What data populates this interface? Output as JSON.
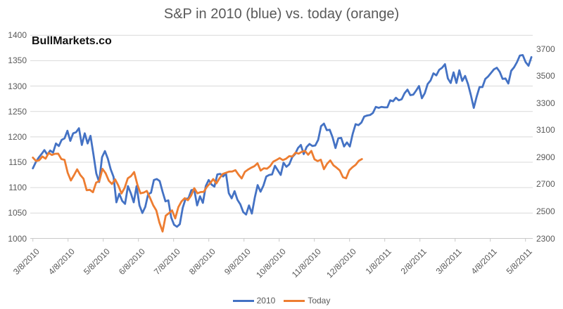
{
  "watermark": "BullMarkets.co",
  "chart_data": {
    "type": "line",
    "title": "S&P in 2010 (blue) vs. today (orange)",
    "grid": true,
    "legend_position": "bottom-center",
    "x_labels": [
      "3/8/2010",
      "4/8/2010",
      "5/8/2010",
      "6/8/2010",
      "7/8/2010",
      "8/8/2010",
      "9/8/2010",
      "10/8/2010",
      "11/8/2010",
      "12/8/2010",
      "1/8/2011",
      "2/8/2011",
      "3/8/2011",
      "4/8/2011",
      "5/8/2011"
    ],
    "axes": {
      "left": {
        "min": 1000,
        "max": 1400,
        "step": 50,
        "tick_labels": [
          "1400",
          "1350",
          "1300",
          "1250",
          "1200",
          "1150",
          "1100",
          "1050",
          "1000"
        ]
      },
      "right": {
        "label_min": 2300,
        "label_max": 3700,
        "step": 200,
        "scale_min": 2300,
        "scale_max": 3800,
        "tick_labels": [
          "3700",
          "3500",
          "3300",
          "3100",
          "2900",
          "2700",
          "2500",
          "2300"
        ]
      }
    },
    "series": [
      {
        "name": "2010",
        "color": "#4472C4",
        "axis": "left",
        "x_start_frac": 0.0,
        "x_end_frac": 1.012,
        "values": [
          1138,
          1150,
          1159,
          1166,
          1174,
          1165,
          1173,
          1169,
          1187,
          1182,
          1194,
          1197,
          1212,
          1192,
          1207,
          1209,
          1217,
          1184,
          1207,
          1187,
          1202,
          1166,
          1128,
          1111,
          1160,
          1172,
          1157,
          1136,
          1121,
          1071,
          1088,
          1074,
          1068,
          1103,
          1089,
          1071,
          1103,
          1065,
          1050,
          1062,
          1087,
          1090,
          1115,
          1117,
          1113,
          1092,
          1073,
          1075,
          1041,
          1027,
          1023,
          1028,
          1060,
          1078,
          1079,
          1095,
          1096,
          1065,
          1083,
          1070,
          1103,
          1115,
          1106,
          1102,
          1126,
          1127,
          1122,
          1128,
          1089,
          1079,
          1093,
          1076,
          1067,
          1052,
          1047,
          1065,
          1049,
          1080,
          1105,
          1092,
          1104,
          1122,
          1125,
          1126,
          1143,
          1134,
          1125,
          1149,
          1141,
          1146,
          1160,
          1166,
          1178,
          1184,
          1166,
          1180,
          1186,
          1182,
          1183,
          1194,
          1221,
          1226,
          1213,
          1214,
          1199,
          1178,
          1197,
          1198,
          1181,
          1189,
          1181,
          1206,
          1225,
          1223,
          1228,
          1240,
          1242,
          1243,
          1247,
          1259,
          1257,
          1259,
          1258,
          1258,
          1272,
          1270,
          1277,
          1272,
          1274,
          1286,
          1293,
          1282,
          1283,
          1291,
          1300,
          1276,
          1286,
          1304,
          1311,
          1325,
          1321,
          1332,
          1336,
          1343,
          1315,
          1306,
          1327,
          1306,
          1331,
          1310,
          1320,
          1304,
          1282,
          1257,
          1279,
          1298,
          1298,
          1314,
          1319,
          1326,
          1333,
          1336,
          1328,
          1314,
          1315,
          1305,
          1330,
          1337,
          1347,
          1360,
          1361,
          1347,
          1340,
          1357
        ]
      },
      {
        "name": "Today",
        "color": "#ED7D31",
        "axis": "right",
        "x_start_frac": 0.0,
        "x_end_frac": 0.668,
        "values": [
          2897,
          2872,
          2877,
          2905,
          2889,
          2931,
          2916,
          2925,
          2926,
          2886,
          2880,
          2785,
          2728,
          2767,
          2810,
          2768,
          2741,
          2656,
          2659,
          2641,
          2712,
          2723,
          2814,
          2781,
          2726,
          2702,
          2736,
          2691,
          2632,
          2673,
          2744,
          2760,
          2790,
          2700,
          2633,
          2638,
          2651,
          2600,
          2546,
          2507,
          2417,
          2351,
          2468,
          2486,
          2507,
          2448,
          2532,
          2574,
          2597,
          2582,
          2616,
          2671,
          2633,
          2642,
          2644,
          2681,
          2707,
          2738,
          2706,
          2745,
          2776,
          2785,
          2793,
          2794,
          2804,
          2771,
          2743,
          2791,
          2808,
          2822,
          2833,
          2855,
          2801,
          2818,
          2815,
          2834,
          2867,
          2879,
          2893,
          2878,
          2888,
          2907,
          2905,
          2933,
          2926,
          2940,
          2946,
          2918,
          2946,
          2884,
          2871,
          2881,
          2811,
          2851,
          2876,
          2840,
          2822,
          2802,
          2752,
          2744,
          2803,
          2826,
          2843,
          2873,
          2886
        ]
      }
    ],
    "style_colors": {
      "gridline": "#D9D9D9",
      "axis_line": "#C9C9C9",
      "tick_mark": "#C9C9C9",
      "axis_text": "#595959",
      "title_text": "#595959",
      "watermark_text": "#111111"
    }
  }
}
